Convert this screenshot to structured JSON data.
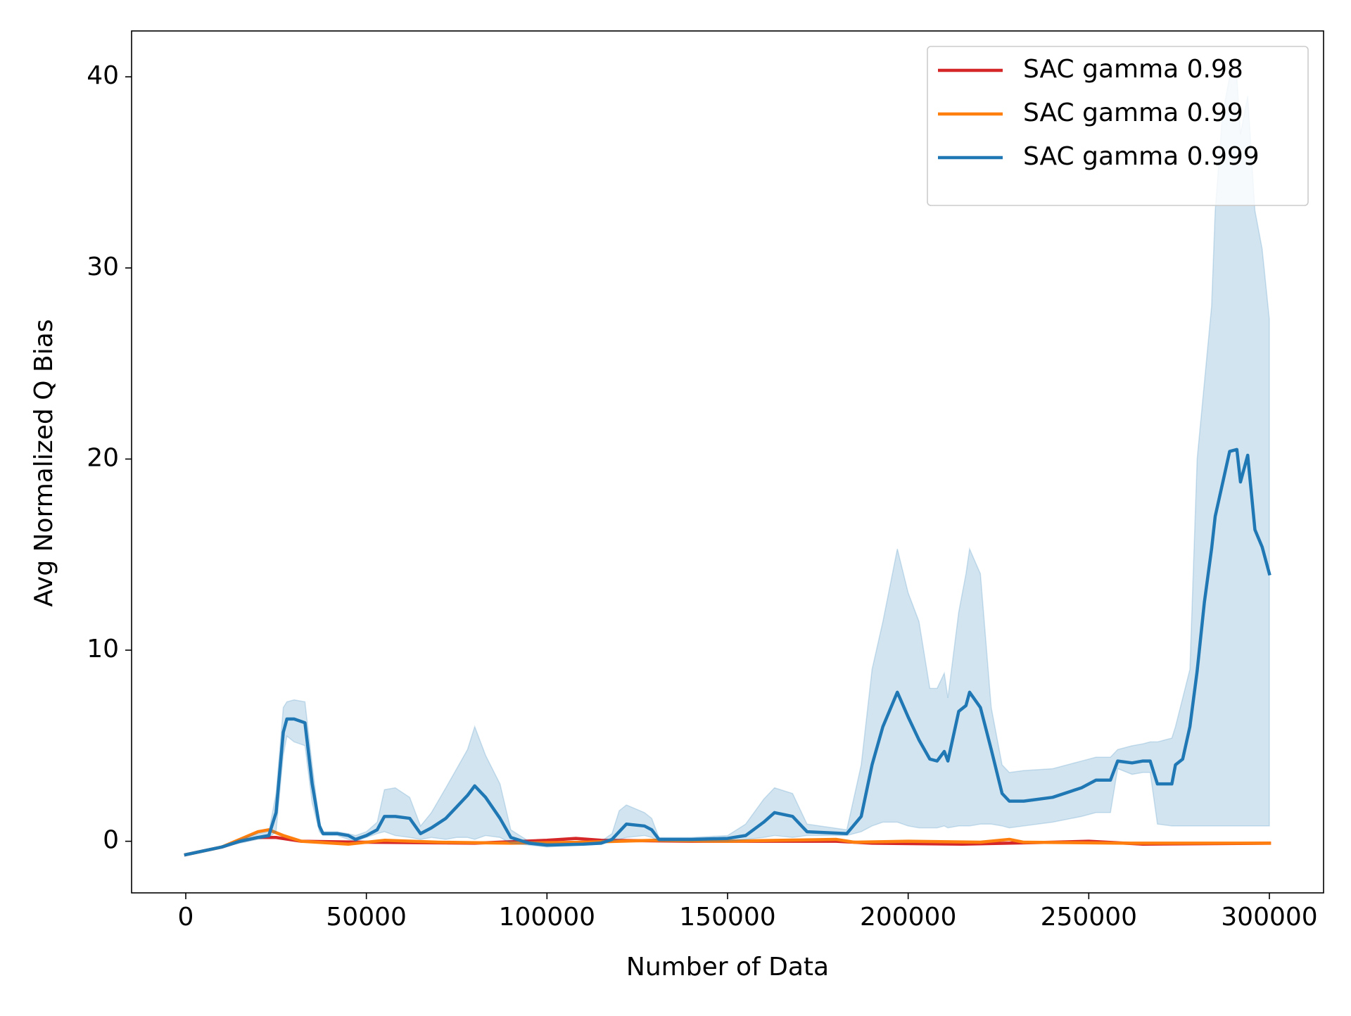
{
  "chart_data": {
    "type": "line",
    "xlabel": "Number of Data",
    "ylabel": "Avg Normalized Q Bias",
    "xlim": [
      -15000,
      315000
    ],
    "ylim": [
      -2.7,
      42.4
    ],
    "xticks": [
      0,
      50000,
      100000,
      150000,
      200000,
      250000,
      300000
    ],
    "yticks": [
      0,
      10,
      20,
      30,
      40
    ],
    "legend": "upper right",
    "series": [
      {
        "name": "SAC gamma 0.98",
        "color": "#d62728",
        "x": [
          0,
          10000,
          15000,
          20000,
          25000,
          32000,
          50000,
          80000,
          100000,
          108000,
          115000,
          140000,
          180000,
          190000,
          215000,
          240000,
          250000,
          265000,
          300000
        ],
        "values": [
          -0.7,
          -0.3,
          0,
          0.2,
          0.2,
          0,
          -0.05,
          -0.1,
          0.05,
          0.15,
          0.05,
          0,
          0,
          -0.1,
          -0.15,
          -0.05,
          0,
          -0.15,
          -0.1
        ]
      },
      {
        "name": "SAC gamma 0.99",
        "color": "#ff7f0e",
        "x": [
          0,
          10000,
          15000,
          20000,
          23000,
          27000,
          32000,
          45000,
          55000,
          70000,
          90000,
          110000,
          130000,
          150000,
          165000,
          180000,
          185000,
          200000,
          220000,
          228000,
          232000,
          260000,
          300000
        ],
        "values": [
          -0.7,
          -0.3,
          0.1,
          0.5,
          0.6,
          0.3,
          0,
          -0.15,
          0.05,
          -0.05,
          -0.1,
          -0.05,
          0.05,
          0,
          0.05,
          0.1,
          -0.05,
          0,
          -0.05,
          0.1,
          -0.05,
          -0.1,
          -0.1
        ]
      },
      {
        "name": "SAC gamma 0.999",
        "color": "#1f77b4",
        "x": [
          0,
          5000,
          10000,
          15000,
          20000,
          23000,
          25000,
          27000,
          28000,
          30000,
          33000,
          35000,
          37000,
          38000,
          42000,
          45000,
          47000,
          50000,
          53000,
          55000,
          58000,
          62000,
          65000,
          68000,
          72000,
          75000,
          78000,
          80000,
          83000,
          87000,
          90000,
          95000,
          100000,
          110000,
          115000,
          118000,
          120000,
          122000,
          127000,
          129000,
          131000,
          140000,
          150000,
          155000,
          160000,
          163000,
          168000,
          172000,
          183000,
          187000,
          190000,
          193000,
          197000,
          200000,
          203000,
          206000,
          208000,
          210000,
          211000,
          214000,
          216000,
          217000,
          220000,
          223000,
          226000,
          228000,
          232000,
          240000,
          248000,
          252000,
          256000,
          258000,
          262000,
          265000,
          267000,
          269000,
          273000,
          274000,
          276000,
          278000,
          280000,
          282000,
          284000,
          285000,
          287000,
          289000,
          291000,
          292000,
          294000,
          296000,
          298000,
          300000
        ],
        "values": [
          -0.7,
          -0.5,
          -0.3,
          0,
          0.2,
          0.3,
          1.5,
          5.7,
          6.4,
          6.4,
          6.2,
          3,
          0.8,
          0.4,
          0.4,
          0.3,
          0.1,
          0.3,
          0.6,
          1.3,
          1.3,
          1.2,
          0.4,
          0.7,
          1.2,
          1.8,
          2.4,
          2.9,
          2.3,
          1.2,
          0.2,
          -0.1,
          -0.2,
          -0.15,
          -0.1,
          0.1,
          0.5,
          0.9,
          0.8,
          0.6,
          0.1,
          0.1,
          0.15,
          0.3,
          1,
          1.5,
          1.3,
          0.5,
          0.4,
          1.3,
          4,
          6,
          7.8,
          6.5,
          5.3,
          4.3,
          4.2,
          4.7,
          4.2,
          6.8,
          7.1,
          7.8,
          7,
          4.8,
          2.5,
          2.1,
          2.1,
          2.3,
          2.8,
          3.2,
          3.2,
          4.2,
          4.1,
          4.2,
          4.2,
          3,
          3,
          4,
          4.3,
          6,
          8.9,
          12.5,
          15.3,
          17,
          18.7,
          20.4,
          20.5,
          18.8,
          20.2,
          16.3,
          15.4,
          14
        ],
        "lower": [
          -0.7,
          -0.5,
          -0.3,
          -0.1,
          0.1,
          0.2,
          0.5,
          4.5,
          5.5,
          5.2,
          5,
          2,
          0.5,
          0.3,
          0.3,
          0.1,
          0,
          0.2,
          0.4,
          0.5,
          0.3,
          0.2,
          0.1,
          0.2,
          0.1,
          0.2,
          0.2,
          0.1,
          0.3,
          0.2,
          -0.1,
          -0.2,
          -0.3,
          -0.2,
          -0.15,
          0,
          0.1,
          0.2,
          0.3,
          0.2,
          0,
          0,
          0,
          0.1,
          0.2,
          0.3,
          0.2,
          0.3,
          0.3,
          0.5,
          0.8,
          1,
          1,
          0.8,
          0.7,
          0.7,
          0.7,
          0.8,
          0.7,
          0.8,
          0.8,
          0.8,
          0.9,
          0.9,
          0.8,
          0.7,
          0.8,
          1,
          1.3,
          1.5,
          1.5,
          3.8,
          3.5,
          3.6,
          3.6,
          0.9,
          0.8,
          0.8,
          0.8,
          0.8,
          0.8,
          0.8,
          0.8,
          0.8,
          0.8,
          0.8,
          0.8,
          0.8,
          0.8,
          0.8,
          0.8,
          0.8
        ],
        "upper": [
          -0.7,
          -0.5,
          -0.3,
          0.1,
          0.4,
          0.5,
          2.5,
          7,
          7.3,
          7.4,
          7.3,
          4,
          1,
          0.5,
          0.5,
          0.4,
          0.3,
          0.5,
          1,
          2.7,
          2.8,
          2.3,
          0.8,
          1.5,
          2.8,
          3.8,
          4.8,
          6,
          4.5,
          3,
          0.6,
          0,
          -0.1,
          -0.1,
          0,
          0.4,
          1.6,
          1.9,
          1.5,
          1.2,
          0.2,
          0.2,
          0.3,
          0.9,
          2.2,
          2.8,
          2.5,
          0.9,
          0.6,
          4,
          9,
          11.5,
          15.3,
          13,
          11.5,
          8,
          8,
          8.8,
          7.5,
          12,
          14,
          15.3,
          14,
          7,
          4,
          3.6,
          3.7,
          3.8,
          4.2,
          4.4,
          4.4,
          4.8,
          5,
          5.1,
          5.2,
          5.2,
          5.4,
          6,
          7.5,
          9,
          20,
          24,
          28,
          33,
          38,
          40,
          40,
          37,
          39,
          33,
          31,
          27.3
        ]
      }
    ]
  }
}
